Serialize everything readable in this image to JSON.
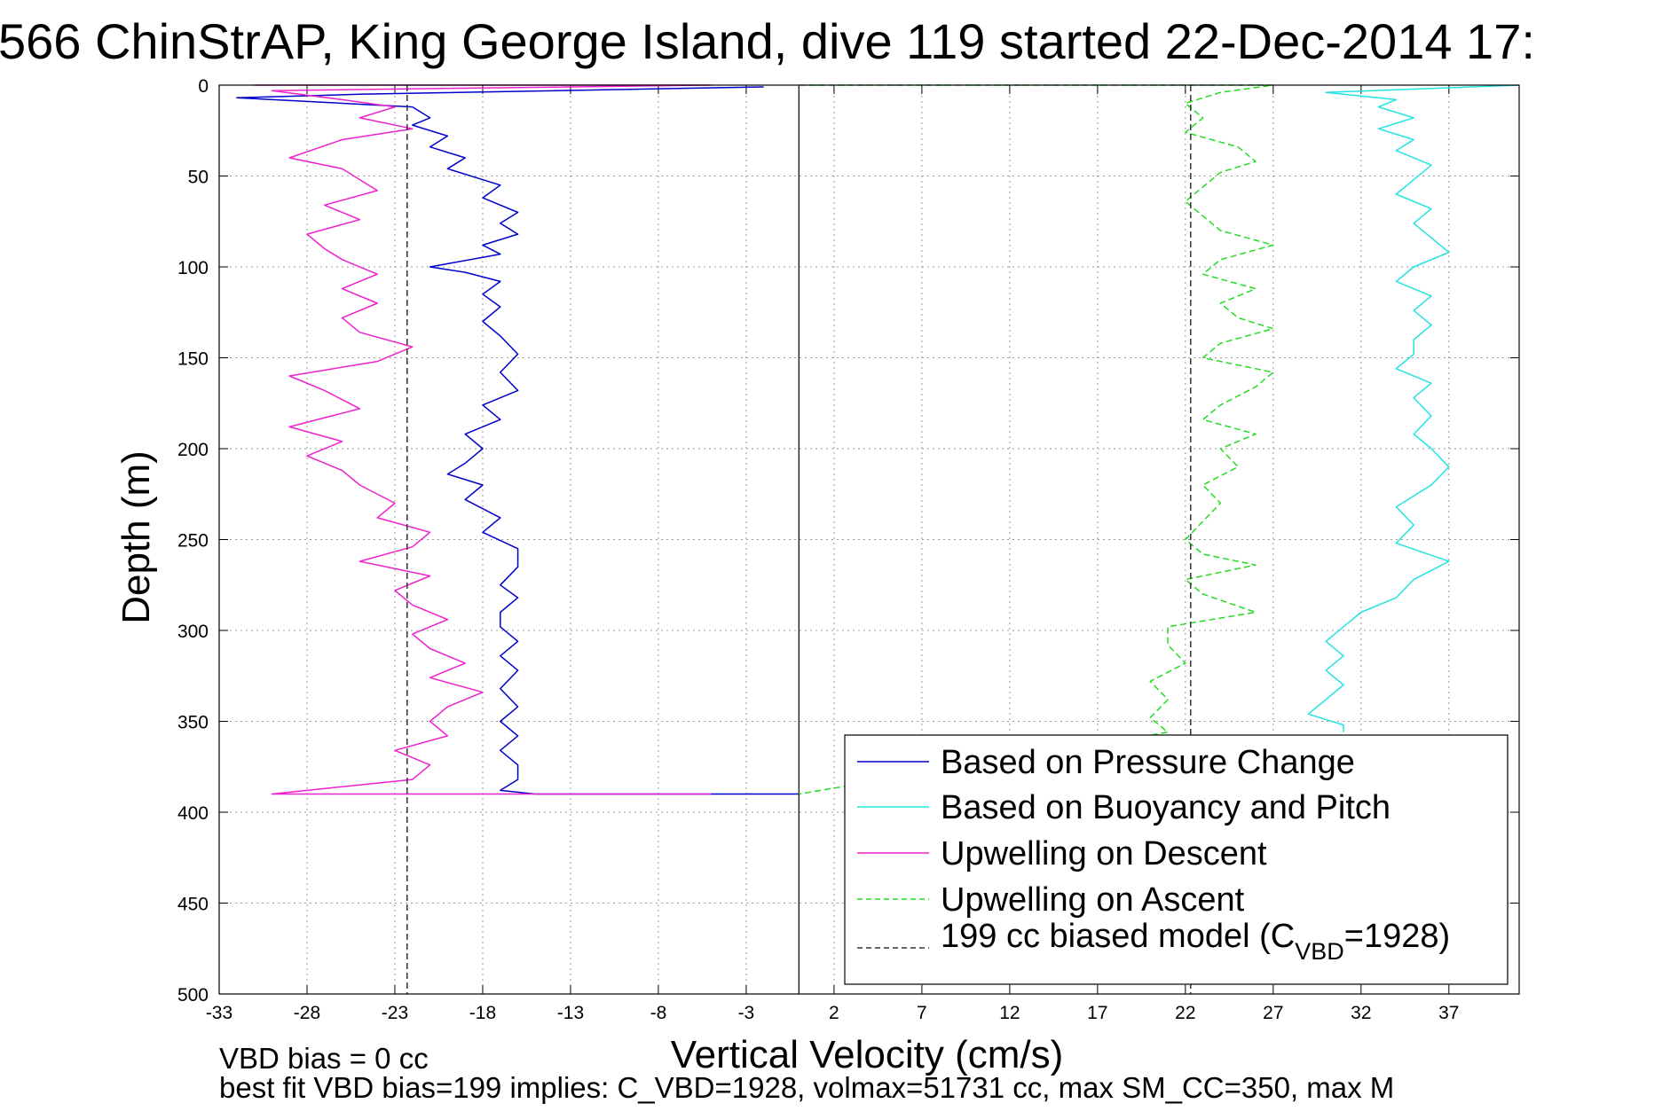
{
  "chart_data": {
    "type": "line",
    "title": "566 ChinStrAP, King George Island, dive 119 started 22-Dec-2014 17:",
    "xlabel": "Vertical Velocity (cm/s)",
    "ylabel": "Depth (m)",
    "xlim": [
      -33,
      41
    ],
    "ylim": [
      0,
      500
    ],
    "y_reversed": true,
    "grid": true,
    "legend_position": "bottom-right",
    "xticks": [
      -33,
      -28,
      -23,
      -18,
      -13,
      -8,
      -3,
      2,
      7,
      12,
      17,
      22,
      27,
      32,
      37
    ],
    "yticks": [
      0,
      50,
      100,
      150,
      200,
      250,
      300,
      350,
      400,
      450,
      500
    ],
    "zero_line_x": 0,
    "series": [
      {
        "name": "Based on Pressure Change",
        "color": "#0000cc",
        "dash": "solid",
        "points": [
          [
            -2,
            1
          ],
          [
            -25,
            5
          ],
          [
            -32,
            7
          ],
          [
            -22,
            12
          ],
          [
            -21,
            18
          ],
          [
            -22,
            22
          ],
          [
            -20,
            28
          ],
          [
            -21,
            34
          ],
          [
            -19,
            40
          ],
          [
            -20,
            46
          ],
          [
            -17,
            55
          ],
          [
            -18,
            62
          ],
          [
            -16,
            70
          ],
          [
            -17,
            76
          ],
          [
            -16,
            82
          ],
          [
            -18,
            88
          ],
          [
            -17,
            93
          ],
          [
            -21,
            100
          ],
          [
            -19,
            103
          ],
          [
            -17,
            108
          ],
          [
            -18,
            115
          ],
          [
            -17,
            122
          ],
          [
            -18,
            130
          ],
          [
            -17,
            138
          ],
          [
            -16,
            148
          ],
          [
            -17,
            158
          ],
          [
            -16,
            168
          ],
          [
            -18,
            176
          ],
          [
            -17,
            184
          ],
          [
            -19,
            192
          ],
          [
            -18,
            200
          ],
          [
            -19,
            208
          ],
          [
            -20,
            214
          ],
          [
            -18,
            220
          ],
          [
            -19,
            228
          ],
          [
            -17,
            238
          ],
          [
            -18,
            246
          ],
          [
            -16,
            255
          ],
          [
            -16,
            265
          ],
          [
            -17,
            275
          ],
          [
            -16,
            282
          ],
          [
            -17,
            290
          ],
          [
            -17,
            298
          ],
          [
            -16,
            306
          ],
          [
            -17,
            314
          ],
          [
            -16,
            322
          ],
          [
            -17,
            332
          ],
          [
            -16,
            342
          ],
          [
            -17,
            350
          ],
          [
            -16,
            358
          ],
          [
            -17,
            366
          ],
          [
            -16,
            374
          ],
          [
            -16,
            382
          ],
          [
            -17,
            388
          ],
          [
            -15,
            390
          ],
          [
            0,
            390
          ]
        ]
      },
      {
        "name": "Based on Buoyancy and Pitch",
        "color": "#22e3e3",
        "dash": "solid",
        "points": [
          [
            41,
            0
          ],
          [
            30,
            4
          ],
          [
            34,
            8
          ],
          [
            33,
            12
          ],
          [
            35,
            18
          ],
          [
            33,
            24
          ],
          [
            35,
            30
          ],
          [
            34,
            36
          ],
          [
            36,
            44
          ],
          [
            35,
            52
          ],
          [
            34,
            60
          ],
          [
            36,
            68
          ],
          [
            35,
            76
          ],
          [
            36,
            84
          ],
          [
            37,
            92
          ],
          [
            35,
            100
          ],
          [
            34,
            108
          ],
          [
            36,
            116
          ],
          [
            35,
            124
          ],
          [
            36,
            132
          ],
          [
            35,
            140
          ],
          [
            35,
            148
          ],
          [
            34,
            156
          ],
          [
            36,
            164
          ],
          [
            35,
            172
          ],
          [
            36,
            182
          ],
          [
            35,
            192
          ],
          [
            36,
            200
          ],
          [
            37,
            210
          ],
          [
            36,
            220
          ],
          [
            34,
            232
          ],
          [
            35,
            242
          ],
          [
            34,
            252
          ],
          [
            37,
            262
          ],
          [
            35,
            272
          ],
          [
            34,
            282
          ],
          [
            32,
            290
          ],
          [
            31,
            298
          ],
          [
            30,
            306
          ],
          [
            31,
            314
          ],
          [
            30,
            322
          ],
          [
            31,
            330
          ],
          [
            30,
            338
          ],
          [
            29,
            346
          ],
          [
            31,
            352
          ],
          [
            31,
            356
          ]
        ]
      },
      {
        "name": "Upwelling on Descent",
        "color": "#ee22cc",
        "dash": "solid",
        "points": [
          [
            -31,
            0
          ],
          [
            -5,
            0
          ],
          [
            -30,
            3
          ],
          [
            -26,
            8
          ],
          [
            -23,
            12
          ],
          [
            -25,
            18
          ],
          [
            -22,
            24
          ],
          [
            -26,
            30
          ],
          [
            -29,
            40
          ],
          [
            -26,
            46
          ],
          [
            -25,
            52
          ],
          [
            -24,
            58
          ],
          [
            -27,
            66
          ],
          [
            -25,
            74
          ],
          [
            -28,
            82
          ],
          [
            -27,
            90
          ],
          [
            -26,
            96
          ],
          [
            -24,
            104
          ],
          [
            -26,
            112
          ],
          [
            -24,
            120
          ],
          [
            -26,
            128
          ],
          [
            -25,
            136
          ],
          [
            -22,
            144
          ],
          [
            -24,
            152
          ],
          [
            -29,
            160
          ],
          [
            -27,
            168
          ],
          [
            -25,
            178
          ],
          [
            -29,
            188
          ],
          [
            -26,
            196
          ],
          [
            -28,
            204
          ],
          [
            -26,
            212
          ],
          [
            -25,
            220
          ],
          [
            -23,
            230
          ],
          [
            -24,
            238
          ],
          [
            -21,
            246
          ],
          [
            -22,
            254
          ],
          [
            -25,
            262
          ],
          [
            -21,
            270
          ],
          [
            -23,
            278
          ],
          [
            -22,
            286
          ],
          [
            -20,
            294
          ],
          [
            -22,
            302
          ],
          [
            -21,
            310
          ],
          [
            -19,
            318
          ],
          [
            -21,
            326
          ],
          [
            -18,
            334
          ],
          [
            -20,
            342
          ],
          [
            -21,
            350
          ],
          [
            -20,
            358
          ],
          [
            -23,
            366
          ],
          [
            -21,
            374
          ],
          [
            -22,
            382
          ],
          [
            -30,
            390
          ],
          [
            -5,
            390
          ]
        ]
      },
      {
        "name": "Upwelling on Ascent",
        "color": "#22dd22",
        "dash": "dashed",
        "points": [
          [
            0,
            0
          ],
          [
            27,
            0
          ],
          [
            24,
            4
          ],
          [
            22,
            10
          ],
          [
            23,
            18
          ],
          [
            22,
            26
          ],
          [
            25,
            34
          ],
          [
            26,
            42
          ],
          [
            24,
            48
          ],
          [
            23,
            56
          ],
          [
            22,
            64
          ],
          [
            23,
            72
          ],
          [
            24,
            80
          ],
          [
            27,
            88
          ],
          [
            24,
            96
          ],
          [
            23,
            104
          ],
          [
            26,
            112
          ],
          [
            24,
            120
          ],
          [
            25,
            128
          ],
          [
            27,
            134
          ],
          [
            24,
            142
          ],
          [
            23,
            150
          ],
          [
            27,
            158
          ],
          [
            26,
            166
          ],
          [
            24,
            176
          ],
          [
            23,
            184
          ],
          [
            26,
            192
          ],
          [
            24,
            200
          ],
          [
            25,
            210
          ],
          [
            23,
            220
          ],
          [
            24,
            230
          ],
          [
            23,
            240
          ],
          [
            22,
            250
          ],
          [
            23,
            258
          ],
          [
            26,
            264
          ],
          [
            22,
            272
          ],
          [
            23,
            280
          ],
          [
            26,
            290
          ],
          [
            21,
            298
          ],
          [
            21,
            308
          ],
          [
            22,
            318
          ],
          [
            20,
            328
          ],
          [
            21,
            338
          ],
          [
            20,
            348
          ],
          [
            21,
            356
          ],
          [
            0,
            390
          ]
        ]
      },
      {
        "name": "199 cc biased model (C_VBD=1928)",
        "color": "#333333",
        "dash": "dashed",
        "points": [
          [
            -22.3,
            0
          ],
          [
            -22.3,
            500
          ]
        ],
        "mirror_points": [
          [
            22.3,
            0
          ],
          [
            22.3,
            500
          ]
        ]
      }
    ],
    "legend": [
      {
        "label": "Based on Pressure Change",
        "color": "#0000cc",
        "dash": "solid"
      },
      {
        "label": "Based on Buoyancy and Pitch",
        "color": "#22e3e3",
        "dash": "solid"
      },
      {
        "label": "Upwelling on Descent",
        "color": "#ee22cc",
        "dash": "solid"
      },
      {
        "label": "Upwelling on Ascent",
        "color": "#22dd22",
        "dash": "dashed"
      },
      {
        "label_main": "199 cc biased model (C",
        "label_sub": "VBD",
        "label_tail": "=1928)",
        "color": "#333333",
        "dash": "dashed"
      }
    ],
    "annotations": [
      "VBD bias = 0 cc",
      "best fit VBD bias=199 implies: C_VBD=1928, volmax=51731 cc, max SM_CC=350, max M"
    ]
  }
}
